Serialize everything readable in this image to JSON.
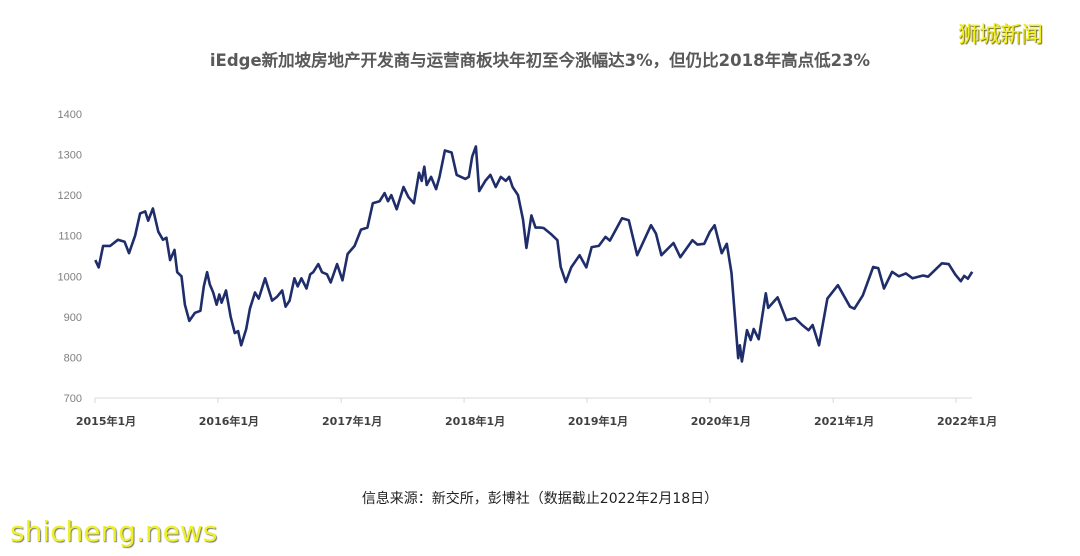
{
  "watermark_top": "狮城新闻",
  "watermark_bottom": "shicheng.news",
  "source": "信息来源：新交所，彭博社（数据截止2022年2月18日）",
  "chart_data": {
    "type": "line",
    "title": "iEdge新加坡房地产开发商与运营商板块年初至今涨幅达3%，但仍比2018年高点低23%",
    "xlabel": "",
    "ylabel": "",
    "ylim": [
      700,
      1400
    ],
    "yticks": [
      "700",
      "800",
      "900",
      "1000",
      "1100",
      "1200",
      "1300",
      "1400"
    ],
    "xticks": [
      {
        "date": "2015-01-01",
        "label": "2015年1月"
      },
      {
        "date": "2016-01-01",
        "label": "2016年1月"
      },
      {
        "date": "2017-01-01",
        "label": "2017年1月"
      },
      {
        "date": "2018-01-01",
        "label": "2018年1月"
      },
      {
        "date": "2019-01-01",
        "label": "2019年1月"
      },
      {
        "date": "2020-01-01",
        "label": "2020年1月"
      },
      {
        "date": "2021-01-01",
        "label": "2021年1月"
      },
      {
        "date": "2022-01-01",
        "label": "2022年1月"
      }
    ],
    "xlim": [
      "2015-01-01",
      "2022-02-18"
    ],
    "grid": false,
    "line_color": "#1f2d6b",
    "series": [
      {
        "points": [
          [
            "2015-01-02",
            1040
          ],
          [
            "2015-01-12",
            1022
          ],
          [
            "2015-01-25",
            1075
          ],
          [
            "2015-02-15",
            1075
          ],
          [
            "2015-03-10",
            1090
          ],
          [
            "2015-03-30",
            1085
          ],
          [
            "2015-04-12",
            1057
          ],
          [
            "2015-04-30",
            1100
          ],
          [
            "2015-05-15",
            1155
          ],
          [
            "2015-05-30",
            1160
          ],
          [
            "2015-06-08",
            1137
          ],
          [
            "2015-06-22",
            1167
          ],
          [
            "2015-07-08",
            1110
          ],
          [
            "2015-07-22",
            1090
          ],
          [
            "2015-08-01",
            1095
          ],
          [
            "2015-08-12",
            1040
          ],
          [
            "2015-08-25",
            1065
          ],
          [
            "2015-09-02",
            1010
          ],
          [
            "2015-09-15",
            1000
          ],
          [
            "2015-09-25",
            930
          ],
          [
            "2015-10-08",
            890
          ],
          [
            "2015-10-25",
            910
          ],
          [
            "2015-11-10",
            915
          ],
          [
            "2015-11-20",
            975
          ],
          [
            "2015-11-30",
            1010
          ],
          [
            "2015-12-08",
            980
          ],
          [
            "2015-12-18",
            960
          ],
          [
            "2015-12-28",
            930
          ],
          [
            "2016-01-05",
            955
          ],
          [
            "2016-01-12",
            935
          ],
          [
            "2016-01-25",
            965
          ],
          [
            "2016-02-08",
            900
          ],
          [
            "2016-02-20",
            860
          ],
          [
            "2016-03-01",
            865
          ],
          [
            "2016-03-10",
            830
          ],
          [
            "2016-03-25",
            870
          ],
          [
            "2016-04-05",
            920
          ],
          [
            "2016-04-20",
            960
          ],
          [
            "2016-05-01",
            945
          ],
          [
            "2016-05-20",
            995
          ],
          [
            "2016-06-10",
            940
          ],
          [
            "2016-06-25",
            950
          ],
          [
            "2016-07-10",
            965
          ],
          [
            "2016-07-20",
            925
          ],
          [
            "2016-08-01",
            940
          ],
          [
            "2016-08-15",
            995
          ],
          [
            "2016-08-25",
            975
          ],
          [
            "2016-09-05",
            995
          ],
          [
            "2016-09-20",
            970
          ],
          [
            "2016-10-01",
            1005
          ],
          [
            "2016-10-10",
            1010
          ],
          [
            "2016-10-25",
            1030
          ],
          [
            "2016-11-05",
            1010
          ],
          [
            "2016-11-20",
            1005
          ],
          [
            "2016-12-01",
            985
          ],
          [
            "2016-12-20",
            1030
          ],
          [
            "2017-01-05",
            990
          ],
          [
            "2017-01-20",
            1055
          ],
          [
            "2017-02-10",
            1075
          ],
          [
            "2017-03-01",
            1115
          ],
          [
            "2017-03-20",
            1120
          ],
          [
            "2017-04-05",
            1180
          ],
          [
            "2017-04-25",
            1185
          ],
          [
            "2017-05-10",
            1205
          ],
          [
            "2017-05-20",
            1185
          ],
          [
            "2017-05-30",
            1200
          ],
          [
            "2017-06-15",
            1165
          ],
          [
            "2017-07-05",
            1220
          ],
          [
            "2017-07-20",
            1195
          ],
          [
            "2017-08-05",
            1180
          ],
          [
            "2017-08-20",
            1255
          ],
          [
            "2017-08-28",
            1235
          ],
          [
            "2017-09-05",
            1270
          ],
          [
            "2017-09-12",
            1225
          ],
          [
            "2017-09-25",
            1245
          ],
          [
            "2017-10-10",
            1215
          ],
          [
            "2017-10-20",
            1245
          ],
          [
            "2017-11-05",
            1310
          ],
          [
            "2017-11-25",
            1305
          ],
          [
            "2017-12-10",
            1250
          ],
          [
            "2018-01-05",
            1240
          ],
          [
            "2018-01-15",
            1245
          ],
          [
            "2018-01-25",
            1295
          ],
          [
            "2018-02-05",
            1320
          ],
          [
            "2018-02-15",
            1210
          ],
          [
            "2018-03-05",
            1235
          ],
          [
            "2018-03-20",
            1250
          ],
          [
            "2018-04-05",
            1220
          ],
          [
            "2018-04-20",
            1245
          ],
          [
            "2018-05-05",
            1235
          ],
          [
            "2018-05-15",
            1245
          ],
          [
            "2018-05-25",
            1220
          ],
          [
            "2018-06-10",
            1200
          ],
          [
            "2018-06-25",
            1140
          ],
          [
            "2018-07-05",
            1070
          ],
          [
            "2018-07-20",
            1150
          ],
          [
            "2018-08-01",
            1120
          ],
          [
            "2018-08-15",
            1120
          ],
          [
            "2018-08-25",
            1119
          ],
          [
            "2018-09-15",
            1105
          ],
          [
            "2018-10-05",
            1089
          ],
          [
            "2018-10-15",
            1023
          ],
          [
            "2018-10-30",
            986
          ],
          [
            "2018-11-15",
            1022
          ],
          [
            "2018-12-10",
            1052
          ],
          [
            "2018-12-30",
            1022
          ],
          [
            "2019-01-15",
            1072
          ],
          [
            "2019-02-05",
            1075
          ],
          [
            "2019-02-25",
            1097
          ],
          [
            "2019-03-10",
            1088
          ],
          [
            "2019-04-15",
            1143
          ],
          [
            "2019-05-05",
            1138
          ],
          [
            "2019-05-30",
            1052
          ],
          [
            "2019-07-10",
            1126
          ],
          [
            "2019-07-25",
            1105
          ],
          [
            "2019-08-10",
            1052
          ],
          [
            "2019-09-15",
            1082
          ],
          [
            "2019-10-05",
            1047
          ],
          [
            "2019-11-10",
            1089
          ],
          [
            "2019-11-25",
            1078
          ],
          [
            "2019-12-15",
            1080
          ],
          [
            "2020-01-01",
            1110
          ],
          [
            "2020-01-15",
            1126
          ],
          [
            "2020-02-05",
            1057
          ],
          [
            "2020-02-20",
            1080
          ],
          [
            "2020-03-05",
            1008
          ],
          [
            "2020-03-25",
            798
          ],
          [
            "2020-03-30",
            830
          ],
          [
            "2020-04-05",
            790
          ],
          [
            "2020-04-20",
            867
          ],
          [
            "2020-05-01",
            843
          ],
          [
            "2020-05-10",
            870
          ],
          [
            "2020-05-25",
            845
          ],
          [
            "2020-06-15",
            958
          ],
          [
            "2020-06-22",
            922
          ],
          [
            "2020-07-20",
            948
          ],
          [
            "2020-08-15",
            892
          ],
          [
            "2020-09-10",
            897
          ],
          [
            "2020-10-01",
            880
          ],
          [
            "2020-10-20",
            867
          ],
          [
            "2020-11-01",
            880
          ],
          [
            "2020-11-20",
            830
          ],
          [
            "2020-12-15",
            945
          ],
          [
            "2021-01-15",
            978
          ],
          [
            "2021-02-20",
            925
          ],
          [
            "2021-03-05",
            920
          ],
          [
            "2021-03-30",
            953
          ],
          [
            "2021-04-30",
            1023
          ],
          [
            "2021-05-15",
            1020
          ],
          [
            "2021-06-01",
            970
          ],
          [
            "2021-06-25",
            1011
          ],
          [
            "2021-07-15",
            1000
          ],
          [
            "2021-08-05",
            1007
          ],
          [
            "2021-08-25",
            995
          ],
          [
            "2021-09-25",
            1002
          ],
          [
            "2021-10-10",
            999
          ],
          [
            "2021-11-20",
            1032
          ],
          [
            "2021-12-10",
            1030
          ],
          [
            "2021-12-30",
            1004
          ],
          [
            "2022-01-15",
            988
          ],
          [
            "2022-01-25",
            1001
          ],
          [
            "2022-02-05",
            994
          ],
          [
            "2022-02-18",
            1011
          ]
        ]
      }
    ]
  }
}
